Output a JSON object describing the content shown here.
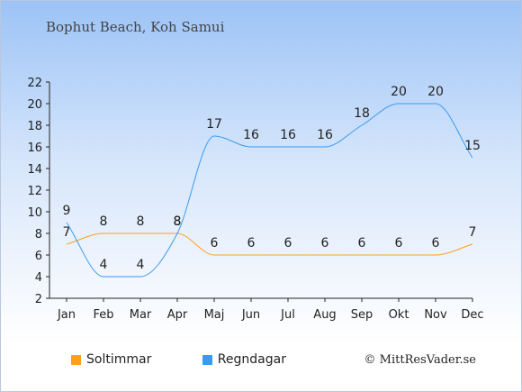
{
  "chart_data": {
    "type": "line",
    "title": "Bophut Beach, Koh Samui",
    "categories": [
      "Jan",
      "Feb",
      "Mar",
      "Apr",
      "Maj",
      "Jun",
      "Jul",
      "Aug",
      "Sep",
      "Okt",
      "Nov",
      "Dec"
    ],
    "ylim": [
      2,
      22
    ],
    "yticks": [
      2,
      4,
      6,
      8,
      10,
      12,
      14,
      16,
      18,
      20,
      22
    ],
    "grid": false,
    "legend_position": "bottom-left",
    "series": [
      {
        "name": "Soltimmar",
        "color": "#ff9f1a",
        "values": [
          7,
          8,
          8,
          8,
          6,
          6,
          6,
          6,
          6,
          6,
          6,
          7
        ]
      },
      {
        "name": "Regndagar",
        "color": "#3a9af0",
        "values": [
          9,
          4,
          4,
          8,
          17,
          16,
          16,
          16,
          18,
          20,
          20,
          15
        ]
      }
    ]
  },
  "footer": {
    "credit": "© MittResVader.se"
  }
}
